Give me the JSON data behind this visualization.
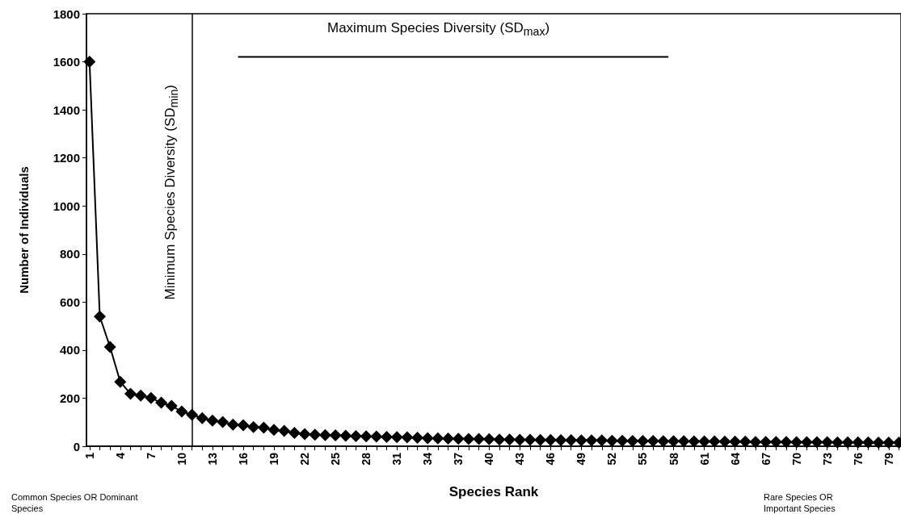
{
  "chart_data": {
    "type": "line",
    "xlabel": "Species Rank",
    "ylabel": "Number of Individuals",
    "x": [
      1,
      2,
      3,
      4,
      5,
      6,
      7,
      8,
      9,
      10,
      11,
      12,
      13,
      14,
      15,
      16,
      17,
      18,
      19,
      20,
      21,
      22,
      23,
      24,
      25,
      26,
      27,
      28,
      29,
      30,
      31,
      32,
      33,
      34,
      35,
      36,
      37,
      38,
      39,
      40,
      41,
      42,
      43,
      44,
      45,
      46,
      47,
      48,
      49,
      50,
      51,
      52,
      53,
      54,
      55,
      56,
      57,
      58,
      59,
      60,
      61,
      62,
      63,
      64,
      65,
      66,
      67,
      68,
      69,
      70,
      71,
      72,
      73,
      74,
      75,
      76,
      77,
      78,
      79,
      80
    ],
    "series": [
      {
        "color": "#000000",
        "marker": "diamond",
        "values": [
          1600,
          540,
          413,
          268,
          218,
          211,
          201,
          181,
          168,
          144,
          131,
          117,
          107,
          101,
          90,
          87,
          80,
          77,
          68,
          64,
          55,
          50,
          48,
          46,
          45,
          44,
          42,
          41,
          40,
          39,
          38,
          37,
          35,
          34,
          33,
          32,
          31,
          30,
          30,
          29,
          28,
          28,
          27,
          27,
          26,
          26,
          25,
          25,
          24,
          24,
          24,
          23,
          23,
          22,
          22,
          22,
          21,
          21,
          21,
          20,
          20,
          20,
          19,
          19,
          19,
          18,
          18,
          18,
          18,
          17,
          17,
          17,
          17,
          16,
          16,
          16,
          16,
          15,
          15,
          15
        ]
      },
      {
        "type": "line",
        "color": "#000000",
        "marker": "none",
        "x": [
          15.5,
          57.5
        ],
        "values": [
          1620,
          1620
        ]
      }
    ],
    "xlim": [
      0.7,
      80.2
    ],
    "xticks": [
      1,
      {
        "value": 2,
        "label": null
      },
      {
        "value": 3,
        "label": null
      },
      4,
      {
        "value": 5,
        "label": null
      },
      {
        "value": 6,
        "label": null
      },
      7,
      {
        "value": 8,
        "label": null
      },
      {
        "value": 9,
        "label": null
      },
      10,
      {
        "value": 11,
        "label": null
      },
      {
        "value": 12,
        "label": null
      },
      13,
      {
        "value": 14,
        "label": null
      },
      {
        "value": 15,
        "label": null
      },
      16,
      {
        "value": 17,
        "label": null
      },
      {
        "value": 18,
        "label": null
      },
      19,
      {
        "value": 20,
        "label": null
      },
      {
        "value": 21,
        "label": null
      },
      22,
      {
        "value": 23,
        "label": null
      },
      {
        "value": 24,
        "label": null
      },
      25,
      {
        "value": 26,
        "label": null
      },
      {
        "value": 27,
        "label": null
      },
      28,
      {
        "value": 29,
        "label": null
      },
      {
        "value": 30,
        "label": null
      },
      31,
      {
        "value": 32,
        "label": null
      },
      {
        "value": 33,
        "label": null
      },
      34,
      {
        "value": 35,
        "label": null
      },
      {
        "value": 36,
        "label": null
      },
      37,
      {
        "value": 38,
        "label": null
      },
      {
        "value": 39,
        "label": null
      },
      40,
      {
        "value": 41,
        "label": null
      },
      {
        "value": 42,
        "label": null
      },
      43,
      {
        "value": 44,
        "label": null
      },
      {
        "value": 45,
        "label": null
      },
      46,
      {
        "value": 47,
        "label": null
      },
      {
        "value": 48,
        "label": null
      },
      49,
      {
        "value": 50,
        "label": null
      },
      {
        "value": 51,
        "label": null
      },
      52,
      {
        "value": 53,
        "label": null
      },
      {
        "value": 54,
        "label": null
      },
      55,
      {
        "value": 56,
        "label": null
      },
      {
        "value": 57,
        "label": null
      },
      58,
      {
        "value": 59,
        "label": null
      },
      {
        "value": 60,
        "label": null
      },
      61,
      {
        "value": 62,
        "label": null
      },
      {
        "value": 63,
        "label": null
      },
      64,
      {
        "value": 65,
        "label": null
      },
      {
        "value": 66,
        "label": null
      },
      67,
      {
        "value": 68,
        "label": null
      },
      {
        "value": 69,
        "label": null
      },
      70,
      {
        "value": 71,
        "label": null
      },
      {
        "value": 72,
        "label": null
      },
      73,
      {
        "value": 74,
        "label": null
      },
      {
        "value": 75,
        "label": null
      },
      76,
      {
        "value": 77,
        "label": null
      },
      {
        "value": 78,
        "label": null
      },
      79,
      {
        "value": 80,
        "label": null
      }
    ],
    "ylim": [
      0,
      1800
    ],
    "yticks": [
      0,
      200,
      400,
      600,
      800,
      1000,
      1200,
      1400,
      1600,
      1800
    ],
    "grid": false,
    "ref_lines": [
      {
        "axis": "x",
        "value": 11,
        "label": "Minimum Species Diversity (SD$_{min}$)",
        "color": "#000000"
      }
    ],
    "annotations": [
      "Maximum Species Diversity (SD$_{max}$)",
      "Common Species OR Dominant Species",
      "Rare Species OR Important Species"
    ]
  }
}
